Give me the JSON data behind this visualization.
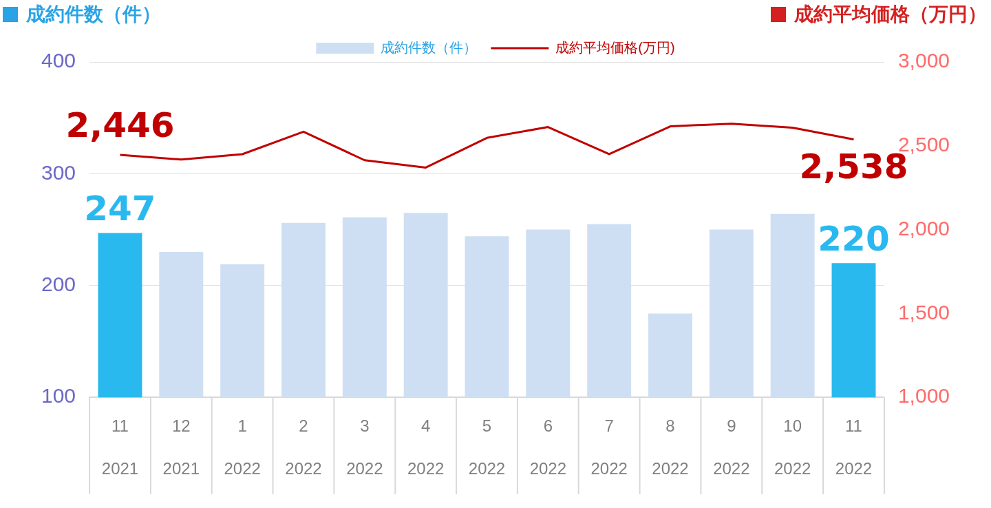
{
  "chart_data": {
    "type": "bar",
    "ylabel": "成約件数（件）",
    "y2label": "成約平均価格（万円）",
    "categories": [
      "11\n2021",
      "12\n2021",
      "1\n2022",
      "2\n2022",
      "3\n2022",
      "4\n2022",
      "5\n2022",
      "6\n2022",
      "7\n2022",
      "8\n2022",
      "9\n2022",
      "10\n2022",
      "11\n2022"
    ],
    "series": [
      {
        "name": "成約件数（件）",
        "color": "#cfdff3",
        "colors": [
          "#29b9ee",
          "#cfdff3",
          "#cfdff3",
          "#cfdff3",
          "#cfdff3",
          "#cfdff3",
          "#cfdff3",
          "#cfdff3",
          "#cfdff3",
          "#cfdff3",
          "#cfdff3",
          "#cfdff3",
          "#29b9ee"
        ],
        "values": [
          247,
          230,
          219,
          256,
          261,
          265,
          244,
          250,
          255,
          175,
          250,
          264,
          220
        ],
        "value_labels": [
          "247",
          null,
          null,
          null,
          null,
          null,
          null,
          null,
          null,
          null,
          null,
          null,
          "220"
        ]
      },
      {
        "name": "成約平均価格(万円)",
        "type": "line",
        "axis": "y2",
        "color": "#c00000",
        "values": [
          2446,
          2418,
          2450,
          2584,
          2414,
          2370,
          2547,
          2612,
          2450,
          2616,
          2632,
          2608,
          2538
        ],
        "value_labels": [
          "2,446",
          null,
          null,
          null,
          null,
          null,
          null,
          null,
          null,
          null,
          null,
          null,
          "2,538"
        ]
      }
    ],
    "ylim": [
      100,
      400
    ],
    "yticks": [
      100,
      200,
      300,
      400
    ],
    "y2lim": [
      1000,
      3000
    ],
    "y2ticks": [
      {
        "value": 1000,
        "label": "1,000"
      },
      {
        "value": 1500,
        "label": "1,500"
      },
      {
        "value": 2000,
        "label": "2,000"
      },
      {
        "value": 2500,
        "label": "2,500"
      },
      {
        "value": 3000,
        "label": "3,000"
      }
    ],
    "grid": "y",
    "legend": "top",
    "marker": "none",
    "line_style": "solid"
  }
}
